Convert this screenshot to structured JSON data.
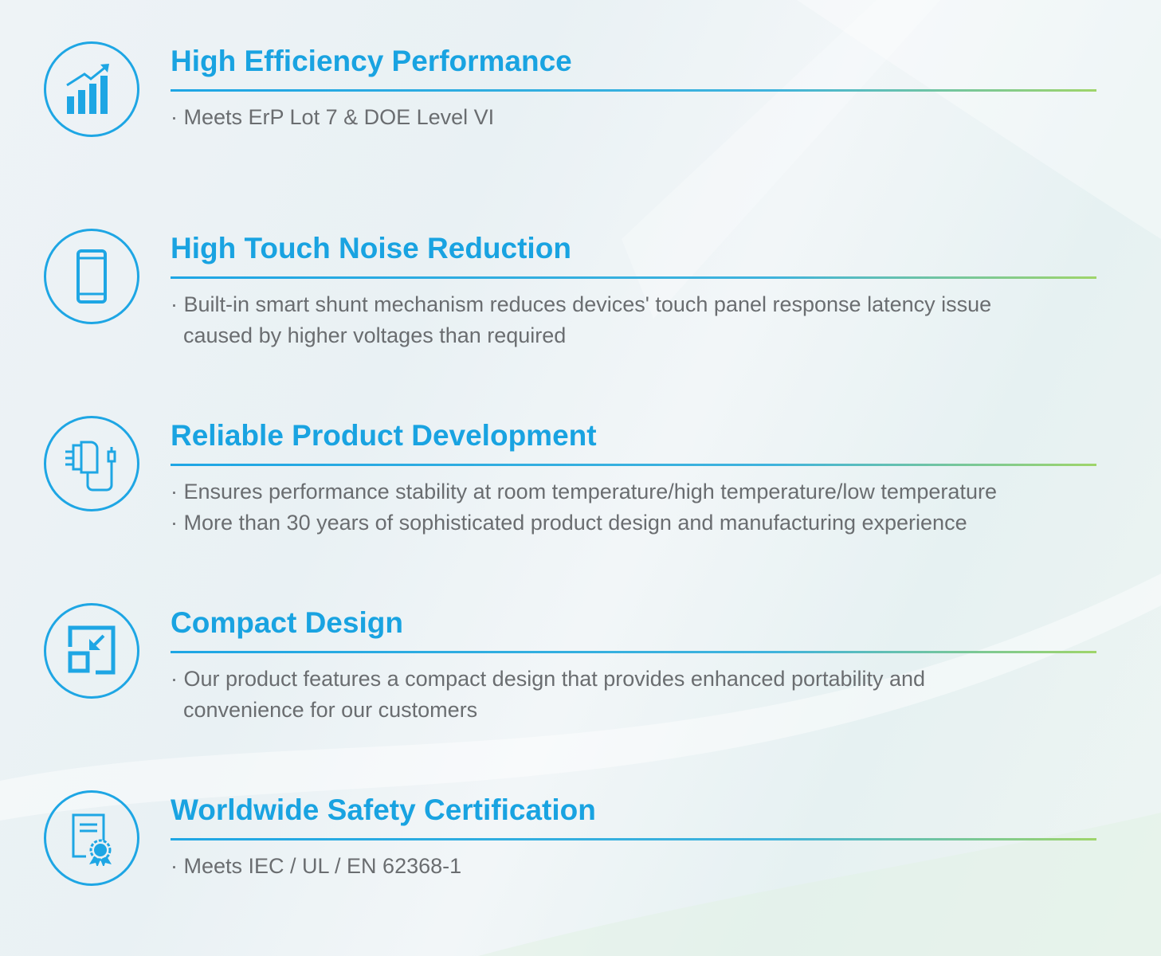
{
  "colors": {
    "accent": "#19a3e1",
    "accent_green": "#9fd56a",
    "text": "#6a6d70"
  },
  "features": [
    {
      "icon": "bar-chart-growth-icon",
      "title": "High Efficiency Performance",
      "bullets": [
        [
          "· Meets ErP Lot 7 & DOE Level VI"
        ]
      ]
    },
    {
      "icon": "smartphone-icon",
      "title": "High Touch Noise Reduction",
      "bullets": [
        [
          "· Built-in smart shunt mechanism reduces devices' touch panel response latency issue",
          "caused by higher voltages than required"
        ]
      ]
    },
    {
      "icon": "power-adapter-icon",
      "title": "Reliable Product Development",
      "bullets": [
        [
          "· Ensures performance stability at room temperature/high temperature/low temperature"
        ],
        [
          "· More than 30 years of sophisticated product  design and manufacturing experience"
        ]
      ]
    },
    {
      "icon": "compact-resize-icon",
      "title": "Compact Design",
      "bullets": [
        [
          "· Our product features a compact design that provides enhanced portability and",
          "convenience for our customers"
        ]
      ]
    },
    {
      "icon": "certificate-icon",
      "title": "Worldwide Safety Certification",
      "bullets": [
        [
          "· Meets IEC / UL / EN 62368-1"
        ]
      ]
    }
  ]
}
